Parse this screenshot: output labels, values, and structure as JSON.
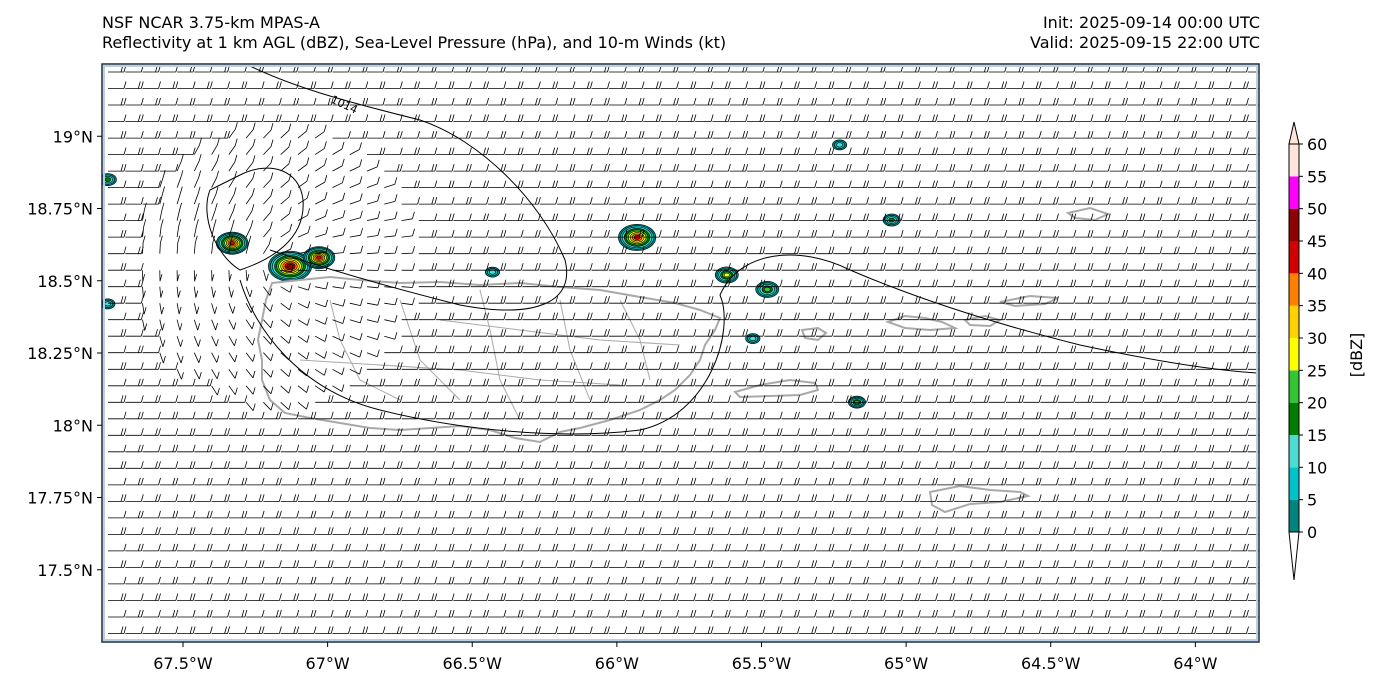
{
  "header": {
    "title_line1": "NSF NCAR 3.75-km MPAS-A",
    "title_line2": "Reflectivity at 1 km AGL (dBZ), Sea-Level Pressure (hPa), and 10-m Winds (kt)",
    "init": "Init: 2025-09-14 00:00 UTC",
    "valid": "Valid: 2025-09-15 22:00 UTC"
  },
  "map": {
    "lon_range": [
      -67.78,
      -63.78
    ],
    "lat_range": [
      17.25,
      19.25
    ],
    "lat_labels": [
      {
        "value": 19.0,
        "text": "19°N"
      },
      {
        "value": 18.75,
        "text": "18.75°N"
      },
      {
        "value": 18.5,
        "text": "18.5°N"
      },
      {
        "value": 18.25,
        "text": "18.25°N"
      },
      {
        "value": 18.0,
        "text": "18°N"
      },
      {
        "value": 17.75,
        "text": "17.75°N"
      },
      {
        "value": 17.5,
        "text": "17.5°N"
      }
    ],
    "lon_labels": [
      {
        "value": -67.5,
        "text": "67.5°W"
      },
      {
        "value": -67.0,
        "text": "67°W"
      },
      {
        "value": -66.5,
        "text": "66.5°W"
      },
      {
        "value": -66.0,
        "text": "66°W"
      },
      {
        "value": -65.5,
        "text": "65.5°W"
      },
      {
        "value": -65.0,
        "text": "65°W"
      },
      {
        "value": -64.5,
        "text": "64.5°W"
      },
      {
        "value": -64.0,
        "text": "64°W"
      }
    ],
    "isobar_label": "1014",
    "colors": {
      "land_outline": "#a9a9a9",
      "isobar": "#000000",
      "barb": "#000000",
      "frame": "#1e2b3c",
      "sea_edge": "#b9cfe6"
    }
  },
  "colorbar": {
    "label": "[dBZ]",
    "levels": [
      "0",
      "5",
      "10",
      "15",
      "20",
      "25",
      "30",
      "35",
      "40",
      "45",
      "50",
      "55",
      "60"
    ],
    "colors": [
      "#00837f",
      "#00c2c9",
      "#4ddbd3",
      "#007d00",
      "#33c533",
      "#ffff00",
      "#ffd200",
      "#ff7f00",
      "#d20000",
      "#8b0000",
      "#ff00ff",
      "#ffe4dc"
    ]
  },
  "cells": [
    {
      "lon": -67.33,
      "lat": 18.63,
      "r": 0.055,
      "peak": 45
    },
    {
      "lon": -67.13,
      "lat": 18.55,
      "r": 0.075,
      "peak": 50
    },
    {
      "lon": -67.03,
      "lat": 18.58,
      "r": 0.055,
      "peak": 45
    },
    {
      "lon": -65.93,
      "lat": 18.65,
      "r": 0.065,
      "peak": 45
    },
    {
      "lon": -65.62,
      "lat": 18.52,
      "r": 0.04,
      "peak": 30
    },
    {
      "lon": -65.48,
      "lat": 18.47,
      "r": 0.04,
      "peak": 25
    },
    {
      "lon": -65.05,
      "lat": 18.71,
      "r": 0.03,
      "peak": 20
    },
    {
      "lon": -65.17,
      "lat": 18.08,
      "r": 0.03,
      "peak": 25
    },
    {
      "lon": -66.43,
      "lat": 18.53,
      "r": 0.025,
      "peak": 15
    },
    {
      "lon": -65.23,
      "lat": 18.97,
      "r": 0.025,
      "peak": 15
    },
    {
      "lon": -65.53,
      "lat": 18.3,
      "r": 0.025,
      "peak": 15
    },
    {
      "lon": -67.76,
      "lat": 18.85,
      "r": 0.03,
      "peak": 20
    },
    {
      "lon": -67.76,
      "lat": 18.42,
      "r": 0.025,
      "peak": 15
    }
  ]
}
